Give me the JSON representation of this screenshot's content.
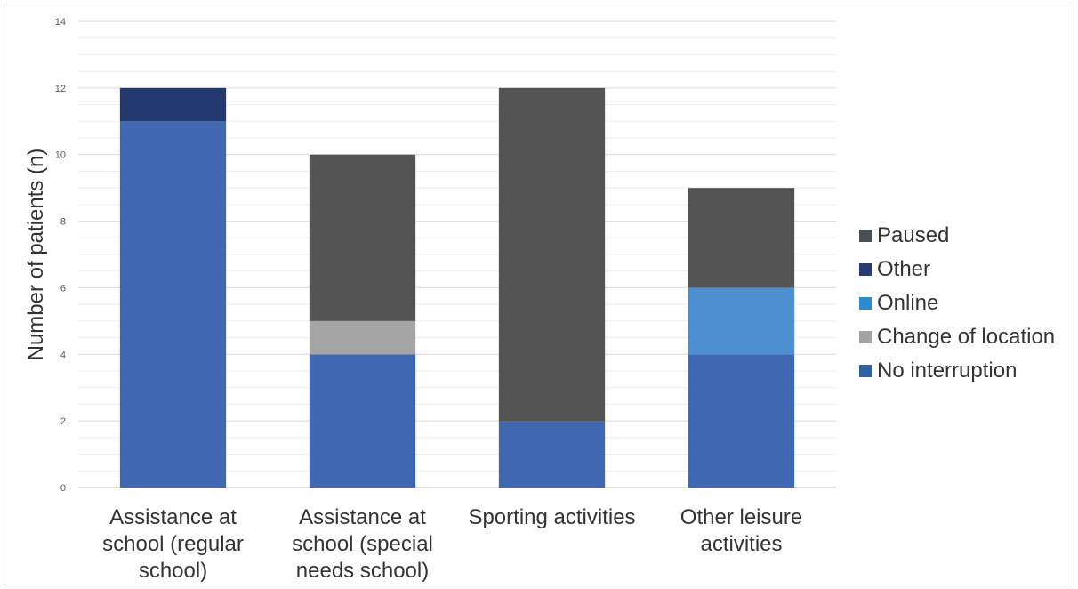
{
  "chart_data": {
    "type": "bar",
    "stacked": true,
    "title": "",
    "xlabel": "",
    "ylabel": "Number of patients (n)",
    "ylim": [
      0,
      14
    ],
    "yticks": [
      "0",
      "2",
      "4",
      "6",
      "8",
      "10",
      "12",
      "14"
    ],
    "grid": true,
    "legend_position": "right",
    "categories": [
      [
        "Assistance at",
        "school (regular",
        "school)"
      ],
      [
        "Assistance at",
        "school (special",
        "needs school)"
      ],
      [
        "Sporting activities"
      ],
      [
        "Other leisure",
        "activities"
      ]
    ],
    "series": [
      {
        "name": "No interruption",
        "color": "#4169b3",
        "values": [
          11,
          4,
          2,
          4
        ]
      },
      {
        "name": "Change of location",
        "color": "#a5a5a5",
        "values": [
          0,
          1,
          0,
          0
        ]
      },
      {
        "name": "Online",
        "color": "#4e8fd0",
        "values": [
          0,
          0,
          0,
          2
        ]
      },
      {
        "name": "Other",
        "color": "#22386e",
        "values": [
          1,
          0,
          0,
          0
        ]
      },
      {
        "name": "Paused",
        "color": "#545454",
        "values": [
          0,
          5,
          10,
          3
        ]
      }
    ],
    "legend_order": [
      "Paused",
      "Other",
      "Online",
      "Change of location",
      "No interruption"
    ],
    "legend_swatch_colors": {
      "Paused": "#4a4f53",
      "Other": "#283a73",
      "Online": "#2e8ad1",
      "Change of location": "#a3a3a3",
      "No interruption": "#2e63a6"
    }
  }
}
